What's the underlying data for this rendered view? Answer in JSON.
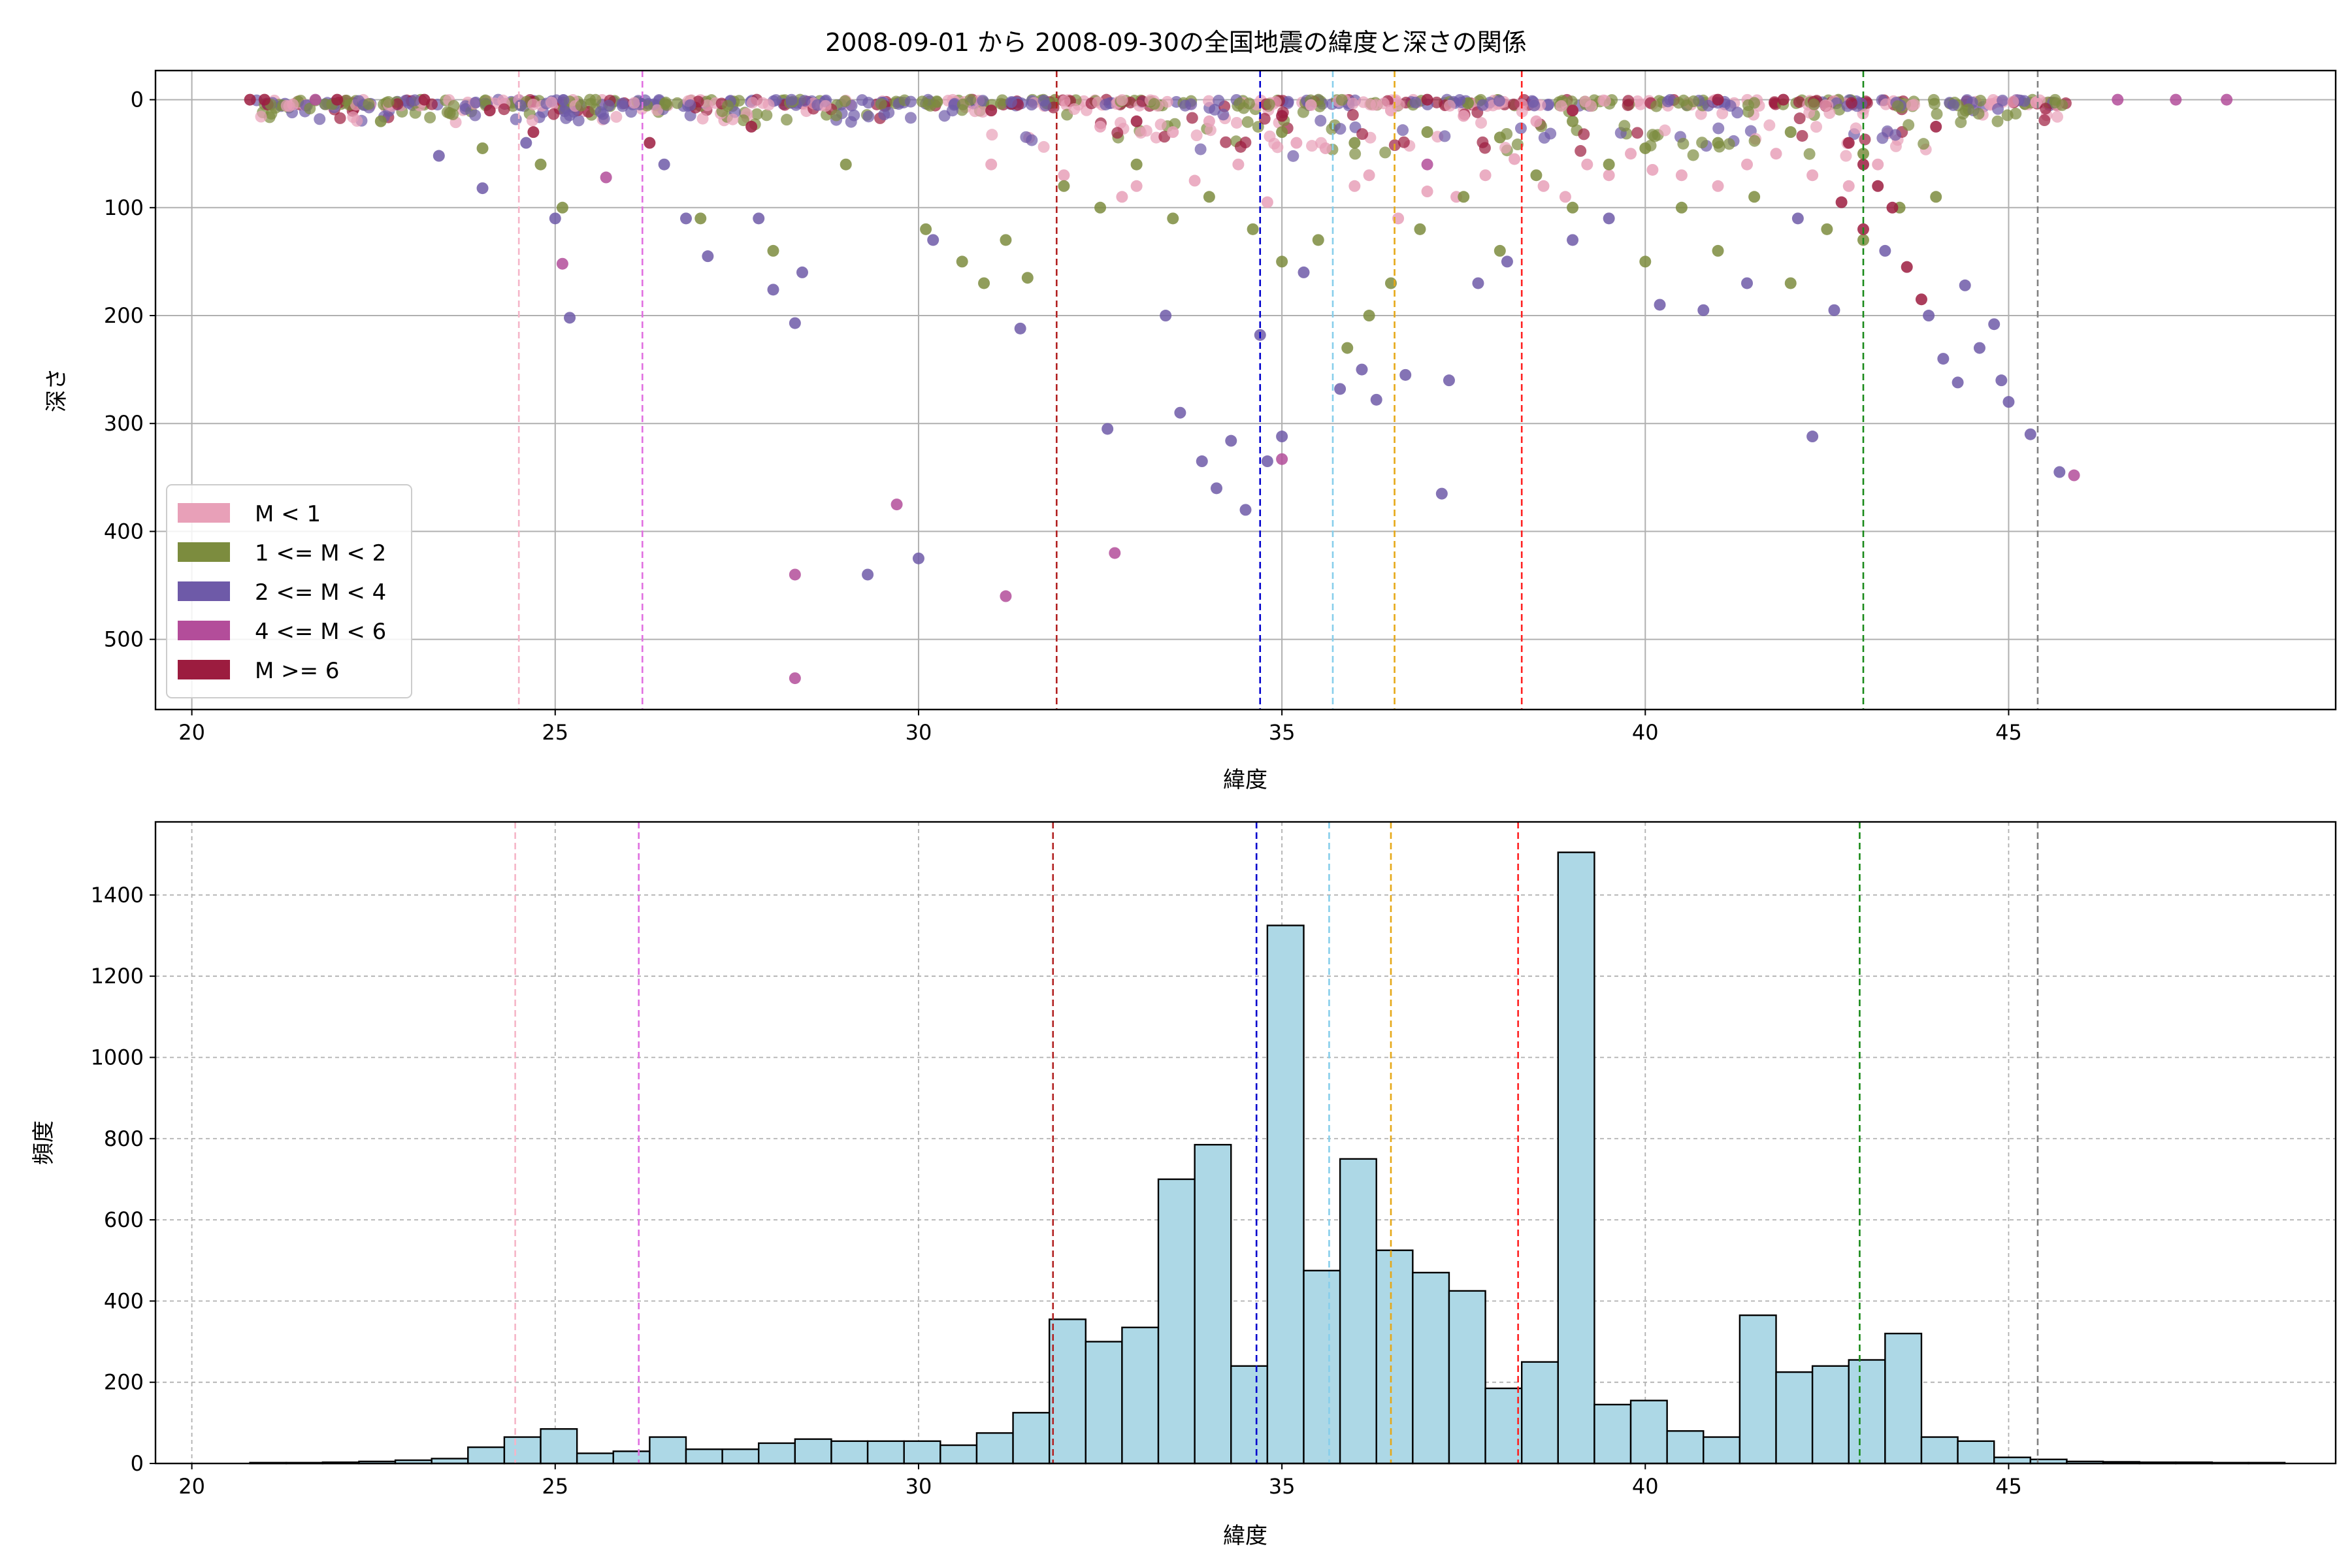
{
  "figure": {
    "title": "2008-09-01 から 2008-09-30の全国地震の緯度と深さの関係"
  },
  "chart_data": [
    {
      "type": "scatter",
      "xlabel": "緯度",
      "ylabel": "深さ",
      "xlim": [
        19.5,
        49.5
      ],
      "ylim": [
        565,
        -27
      ],
      "y_inverted": true,
      "xticks": [
        "20",
        "25",
        "30",
        "35",
        "40",
        "45"
      ],
      "yticks": [
        "0",
        "100",
        "200",
        "300",
        "400",
        "500"
      ],
      "grid": true,
      "legend_position": "lower-left",
      "legend": [
        {
          "label": "M < 1",
          "color": "#e8a0b8"
        },
        {
          "label": "1 <= M < 2",
          "color": "#7c8c3e"
        },
        {
          "label": "2 <= M < 4",
          "color": "#6e5aa8"
        },
        {
          "label": "4 <= M < 6",
          "color": "#b34d9a"
        },
        {
          "label": "M >= 6",
          "color": "#9c1c3f"
        }
      ],
      "series": [
        {
          "name": "M < 1",
          "color": "#e8a0b8",
          "points": [
            [
              31.0,
              60
            ],
            [
              32.0,
              70
            ],
            [
              32.8,
              90
            ],
            [
              33.0,
              80
            ],
            [
              33.8,
              75
            ],
            [
              34.4,
              60
            ],
            [
              34.8,
              95
            ],
            [
              35.2,
              40
            ],
            [
              35.6,
              45
            ],
            [
              36.0,
              80
            ],
            [
              36.2,
              70
            ],
            [
              36.6,
              110
            ],
            [
              37.0,
              85
            ],
            [
              37.4,
              90
            ],
            [
              37.8,
              70
            ],
            [
              38.2,
              55
            ],
            [
              38.6,
              80
            ],
            [
              38.9,
              90
            ],
            [
              39.2,
              60
            ],
            [
              39.5,
              70
            ],
            [
              39.8,
              50
            ],
            [
              40.1,
              65
            ],
            [
              40.5,
              70
            ],
            [
              41.0,
              80
            ],
            [
              41.4,
              60
            ],
            [
              41.8,
              50
            ],
            [
              42.3,
              70
            ],
            [
              42.8,
              80
            ],
            [
              43.2,
              60
            ],
            [
              35.4,
              5
            ],
            [
              36.5,
              10
            ],
            [
              37.5,
              15
            ],
            [
              38.5,
              20
            ],
            [
              39.0,
              10
            ],
            [
              33.5,
              30
            ],
            [
              34.0,
              20
            ],
            [
              32.5,
              25
            ]
          ]
        },
        {
          "name": "1 <= M < 2",
          "color": "#7c8c3e",
          "points": [
            [
              22.6,
              20
            ],
            [
              24.0,
              45
            ],
            [
              24.8,
              60
            ],
            [
              25.1,
              100
            ],
            [
              27.0,
              110
            ],
            [
              28.0,
              140
            ],
            [
              29.0,
              60
            ],
            [
              30.1,
              120
            ],
            [
              30.6,
              150
            ],
            [
              30.9,
              170
            ],
            [
              31.2,
              130
            ],
            [
              31.5,
              165
            ],
            [
              32.0,
              80
            ],
            [
              32.5,
              100
            ],
            [
              33.0,
              60
            ],
            [
              33.5,
              110
            ],
            [
              34.0,
              90
            ],
            [
              34.6,
              120
            ],
            [
              35.0,
              150
            ],
            [
              35.5,
              130
            ],
            [
              35.9,
              230
            ],
            [
              36.2,
              200
            ],
            [
              36.5,
              170
            ],
            [
              36.9,
              120
            ],
            [
              37.5,
              90
            ],
            [
              38.0,
              140
            ],
            [
              38.5,
              70
            ],
            [
              39.0,
              100
            ],
            [
              39.5,
              60
            ],
            [
              40.0,
              150
            ],
            [
              40.5,
              100
            ],
            [
              41.0,
              140
            ],
            [
              41.5,
              90
            ],
            [
              42.0,
              170
            ],
            [
              42.5,
              120
            ],
            [
              43.0,
              130
            ],
            [
              43.5,
              100
            ],
            [
              44.0,
              90
            ],
            [
              35.0,
              30
            ],
            [
              36.0,
              40
            ],
            [
              37.0,
              30
            ],
            [
              38.0,
              35
            ],
            [
              39.0,
              20
            ],
            [
              40.0,
              45
            ],
            [
              41.0,
              40
            ],
            [
              42.0,
              30
            ],
            [
              43.0,
              50
            ]
          ]
        },
        {
          "name": "2 <= M < 4",
          "color": "#6e5aa8",
          "points": [
            [
              23.4,
              52
            ],
            [
              24.0,
              82
            ],
            [
              24.6,
              40
            ],
            [
              25.0,
              110
            ],
            [
              25.2,
              202
            ],
            [
              26.5,
              60
            ],
            [
              26.8,
              110
            ],
            [
              27.1,
              145
            ],
            [
              27.8,
              110
            ],
            [
              28.0,
              176
            ],
            [
              28.3,
              207
            ],
            [
              28.4,
              160
            ],
            [
              29.3,
              440
            ],
            [
              30.0,
              425
            ],
            [
              30.2,
              130
            ],
            [
              31.4,
              212
            ],
            [
              32.6,
              305
            ],
            [
              33.4,
              200
            ],
            [
              33.6,
              290
            ],
            [
              33.9,
              335
            ],
            [
              34.1,
              360
            ],
            [
              34.3,
              316
            ],
            [
              34.5,
              380
            ],
            [
              34.8,
              335
            ],
            [
              35.0,
              312
            ],
            [
              34.7,
              218
            ],
            [
              35.3,
              160
            ],
            [
              35.8,
              268
            ],
            [
              36.1,
              250
            ],
            [
              36.3,
              278
            ],
            [
              36.7,
              255
            ],
            [
              37.2,
              365
            ],
            [
              37.3,
              260
            ],
            [
              37.7,
              170
            ],
            [
              38.1,
              150
            ],
            [
              39.0,
              130
            ],
            [
              39.5,
              110
            ],
            [
              40.2,
              190
            ],
            [
              40.8,
              195
            ],
            [
              41.4,
              170
            ],
            [
              42.1,
              110
            ],
            [
              42.3,
              312
            ],
            [
              42.6,
              195
            ],
            [
              43.3,
              140
            ],
            [
              43.9,
              200
            ],
            [
              44.1,
              240
            ],
            [
              44.3,
              262
            ],
            [
              44.6,
              230
            ],
            [
              44.9,
              260
            ],
            [
              45.0,
              280
            ],
            [
              45.3,
              310
            ],
            [
              45.7,
              345
            ],
            [
              44.8,
              208
            ],
            [
              44.4,
              172
            ]
          ]
        },
        {
          "name": "4 <= M < 6",
          "color": "#b34d9a",
          "points": [
            [
              25.1,
              152
            ],
            [
              25.7,
              72
            ],
            [
              29.7,
              375
            ],
            [
              28.3,
              440
            ],
            [
              31.2,
              460
            ],
            [
              32.7,
              420
            ],
            [
              28.3,
              536
            ],
            [
              35.0,
              333
            ],
            [
              45.9,
              348
            ],
            [
              48.0,
              0
            ],
            [
              46.5,
              0
            ],
            [
              47.3,
              0
            ],
            [
              21.7,
              0
            ],
            [
              37.0,
              60
            ]
          ]
        },
        {
          "name": "M >= 6",
          "color": "#9c1c3f",
          "points": [
            [
              20.8,
              0
            ],
            [
              21.0,
              0
            ],
            [
              22.0,
              0
            ],
            [
              23.2,
              0
            ],
            [
              24.1,
              10
            ],
            [
              24.7,
              30
            ],
            [
              26.3,
              40
            ],
            [
              27.7,
              25
            ],
            [
              31.0,
              10
            ],
            [
              33.0,
              20
            ],
            [
              35.0,
              15
            ],
            [
              37.0,
              0
            ],
            [
              39.0,
              10
            ],
            [
              41.0,
              0
            ],
            [
              42.8,
              40
            ],
            [
              43.0,
              60
            ],
            [
              43.2,
              80
            ],
            [
              43.4,
              100
            ],
            [
              43.0,
              120
            ],
            [
              43.6,
              155
            ],
            [
              43.8,
              185
            ],
            [
              42.7,
              95
            ],
            [
              44.0,
              25
            ],
            [
              41.9,
              0
            ]
          ]
        }
      ],
      "vertical_lines": [
        {
          "x": 24.5,
          "color": "#f5b5c8"
        },
        {
          "x": 26.2,
          "color": "#e070e0"
        },
        {
          "x": 31.9,
          "color": "#b22222"
        },
        {
          "x": 34.7,
          "color": "#0000cd"
        },
        {
          "x": 35.7,
          "color": "#87ceeb"
        },
        {
          "x": 36.55,
          "color": "#e6a817"
        },
        {
          "x": 38.3,
          "color": "#ff2020"
        },
        {
          "x": 43.0,
          "color": "#1a8a1a"
        },
        {
          "x": 45.4,
          "color": "#808080"
        }
      ]
    },
    {
      "type": "bar",
      "xlabel": "緯度",
      "ylabel": "頻度",
      "xlim": [
        19.5,
        49.5
      ],
      "ylim": [
        0,
        1580
      ],
      "xticks": [
        "20",
        "25",
        "30",
        "35",
        "40",
        "45"
      ],
      "yticks": [
        "0",
        "200",
        "400",
        "600",
        "800",
        "1000",
        "1200",
        "1400"
      ],
      "grid": true,
      "bar_color": "#add8e6",
      "bin_start": 20.8,
      "bin_width": 0.5,
      "values": [
        2,
        2,
        3,
        5,
        8,
        12,
        40,
        65,
        85,
        25,
        30,
        65,
        35,
        35,
        50,
        60,
        55,
        55,
        55,
        45,
        75,
        125,
        355,
        300,
        335,
        700,
        785,
        240,
        1325,
        475,
        750,
        525,
        470,
        425,
        185,
        250,
        1505,
        145,
        155,
        80,
        65,
        365,
        225,
        240,
        255,
        320,
        65,
        55,
        15,
        10,
        5,
        4,
        3,
        3,
        2,
        2
      ],
      "vertical_lines": [
        {
          "x": 24.45,
          "color": "#f5b5c8"
        },
        {
          "x": 26.15,
          "color": "#e070e0"
        },
        {
          "x": 31.85,
          "color": "#b22222"
        },
        {
          "x": 34.65,
          "color": "#0000cd"
        },
        {
          "x": 35.65,
          "color": "#87ceeb"
        },
        {
          "x": 36.5,
          "color": "#e6a817"
        },
        {
          "x": 38.25,
          "color": "#ff2020"
        },
        {
          "x": 42.95,
          "color": "#1a8a1a"
        },
        {
          "x": 45.4,
          "color": "#808080"
        }
      ]
    }
  ]
}
